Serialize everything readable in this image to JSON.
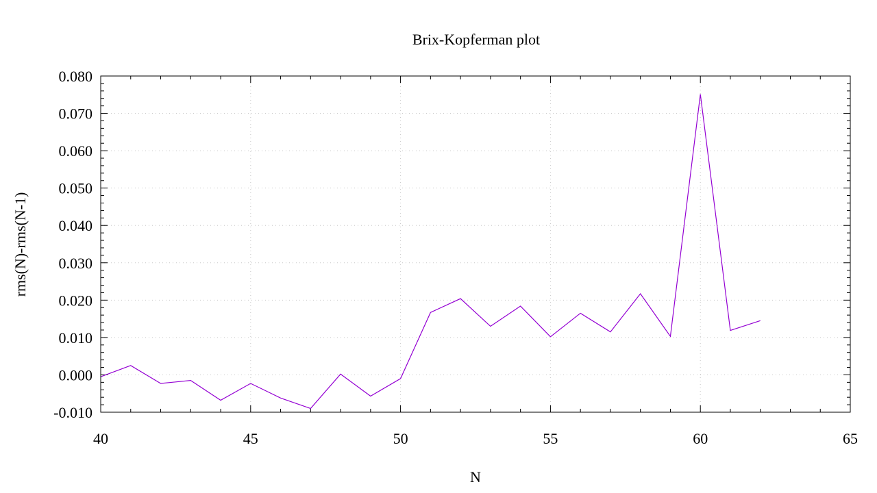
{
  "chart_data": {
    "type": "line",
    "title": "Brix-Kopferman plot",
    "xlabel": "N",
    "ylabel": "rms(N)-rms(N-1)",
    "xlim": [
      40,
      65
    ],
    "ylim": [
      -0.01,
      0.08
    ],
    "grid": true,
    "legend": "none",
    "x_ticks": [
      40,
      45,
      50,
      55,
      60,
      65
    ],
    "x_tick_labels": [
      "40",
      "45",
      "50",
      "55",
      "60",
      "65"
    ],
    "y_ticks": [
      -0.01,
      0.0,
      0.01,
      0.02,
      0.03,
      0.04,
      0.05,
      0.06,
      0.07,
      0.08
    ],
    "y_tick_labels": [
      "-0.010",
      "0.000",
      "0.010",
      "0.020",
      "0.030",
      "0.040",
      "0.050",
      "0.060",
      "0.070",
      "0.080"
    ],
    "series": [
      {
        "color": "#9400d3",
        "x": [
          40,
          41,
          42,
          43,
          44,
          45,
          46,
          47,
          48,
          49,
          50,
          51,
          52,
          53,
          54,
          55,
          56,
          57,
          58,
          59,
          60,
          61,
          62
        ],
        "y": [
          -0.0005,
          0.0025,
          -0.0023,
          -0.0015,
          -0.0068,
          -0.0023,
          -0.0062,
          -0.009,
          0.0002,
          -0.0057,
          -0.001,
          0.0167,
          0.0204,
          0.013,
          0.0184,
          0.0102,
          0.0165,
          0.0115,
          0.0217,
          0.0103,
          0.0751,
          0.0119,
          0.0145
        ]
      }
    ]
  }
}
